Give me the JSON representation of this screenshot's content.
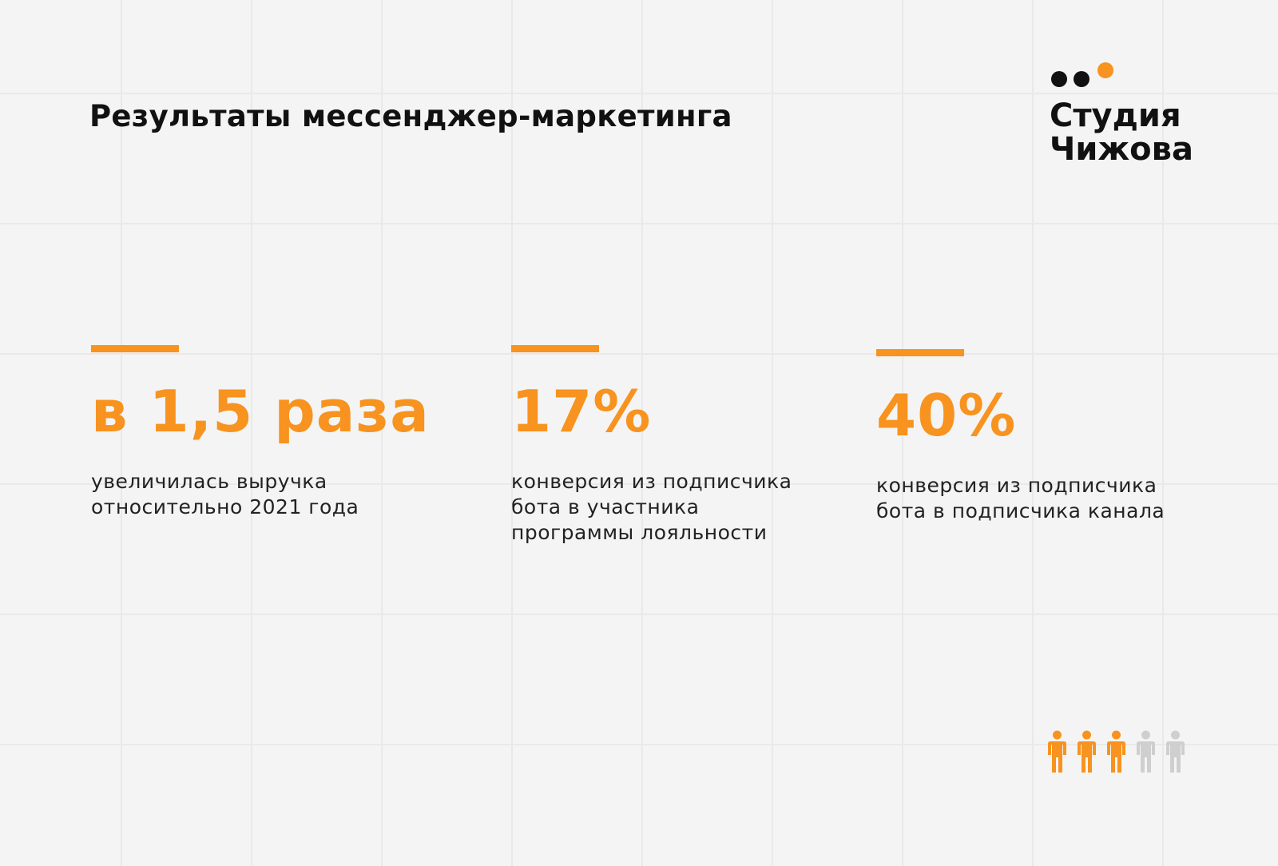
{
  "header": {
    "title": "Результаты мессенджер-маркетинга"
  },
  "logo": {
    "line1": "Студия",
    "line2": "Чижова",
    "colors": {
      "dots": "#111111",
      "accent_dot": "#f7931e"
    }
  },
  "stats": [
    {
      "value": "в 1,5 раза",
      "lines": [
        "увеличилась выручка",
        "относительно 2021 года"
      ]
    },
    {
      "value": "17%",
      "lines": [
        "конверсия из подписчика",
        "бота в участника",
        "программы лояльности"
      ]
    },
    {
      "value": "40%",
      "lines": [
        "конверсия из подписчика",
        "бота в подписчика канала"
      ]
    }
  ],
  "people_indicator": {
    "icon": "person-icon",
    "filled": 3,
    "total": 5,
    "colors": {
      "filled": "#f7931e",
      "empty": "#cfcfcf"
    }
  },
  "colors": {
    "accent": "#f7931e",
    "text": "#111111",
    "background": "#f4f4f4"
  }
}
